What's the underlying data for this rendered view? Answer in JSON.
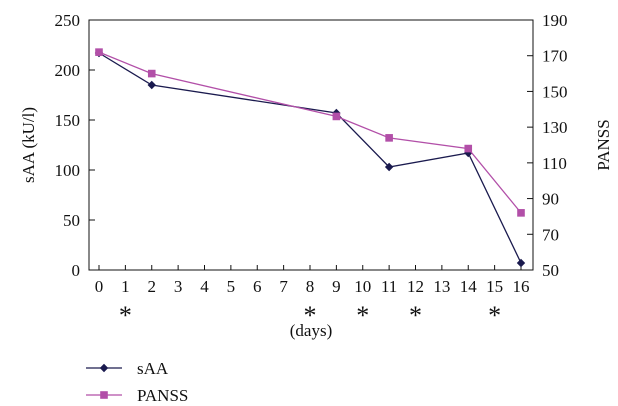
{
  "chart_data": {
    "type": "line",
    "x_categories": [
      "0",
      "1",
      "2",
      "3",
      "4",
      "5",
      "6",
      "7",
      "8",
      "9",
      "10",
      "11",
      "12",
      "13",
      "14",
      "15",
      "16"
    ],
    "xlabel": "(days)",
    "asterisk_days": [
      "1",
      "8",
      "10",
      "12",
      "15"
    ],
    "asterisk_symbol": "*",
    "y_left": {
      "label": "sAA (kU/l)",
      "range": [
        0,
        250
      ],
      "ticks": [
        "0",
        "50",
        "100",
        "150",
        "200",
        "250"
      ]
    },
    "y_right": {
      "label": "PANSS",
      "range": [
        50,
        190
      ],
      "ticks": [
        "50",
        "70",
        "90",
        "110",
        "130",
        "150",
        "170",
        "190"
      ]
    },
    "legend_placement": "bottom-left",
    "grid": false,
    "series": [
      {
        "name": "sAA",
        "axis": "left",
        "color": "#1a1a4e",
        "marker": "diamond",
        "points": [
          {
            "day": "0",
            "value": 217
          },
          {
            "day": "2",
            "value": 185
          },
          {
            "day": "9",
            "value": 157
          },
          {
            "day": "11",
            "value": 103
          },
          {
            "day": "14",
            "value": 117
          },
          {
            "day": "16",
            "value": 7
          }
        ]
      },
      {
        "name": "PANSS",
        "axis": "right",
        "color": "#b24fa8",
        "marker": "square",
        "points": [
          {
            "day": "0",
            "value": 172
          },
          {
            "day": "2",
            "value": 160
          },
          {
            "day": "9",
            "value": 136
          },
          {
            "day": "11",
            "value": 124
          },
          {
            "day": "14",
            "value": 118
          },
          {
            "day": "16",
            "value": 82
          }
        ]
      }
    ]
  }
}
